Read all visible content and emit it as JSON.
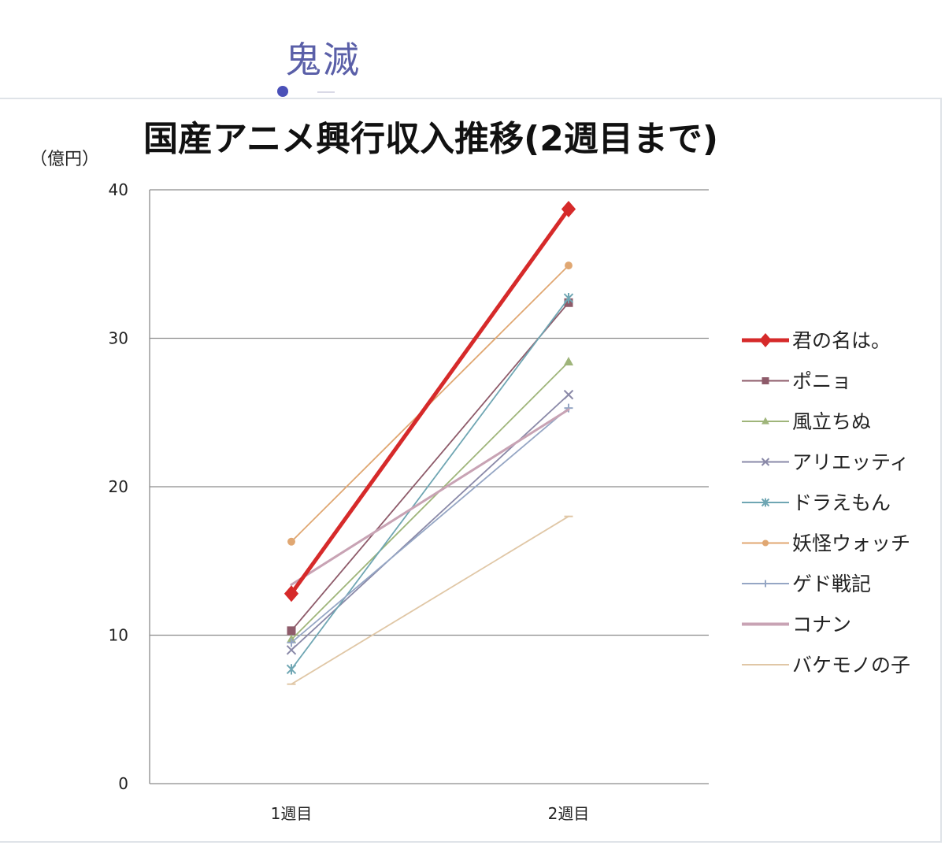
{
  "annotation": "鬼滅",
  "chart_data": {
    "type": "line",
    "title": "国産アニメ興行収入推移(2週目まで)",
    "ylabel": "（億円）",
    "categories": [
      "1週目",
      "2週目"
    ],
    "ylim": [
      0,
      40
    ],
    "yticks": [
      0,
      10,
      20,
      30,
      40
    ],
    "grid": true,
    "legend_position": "right",
    "series": [
      {
        "name": "君の名は。",
        "values": [
          12.8,
          38.7
        ],
        "color": "#d62a2a",
        "marker": "diamond",
        "bold": true
      },
      {
        "name": "ポニョ",
        "values": [
          10.3,
          32.4
        ],
        "color": "#8e5b6a",
        "marker": "square"
      },
      {
        "name": "風立ちぬ",
        "values": [
          9.7,
          28.4
        ],
        "color": "#9fb57a",
        "marker": "triangle"
      },
      {
        "name": "アリエッティ",
        "values": [
          9.0,
          26.2
        ],
        "color": "#8a89a8",
        "marker": "x"
      },
      {
        "name": "ドラえもん",
        "values": [
          7.7,
          32.7
        ],
        "color": "#6fa6b3",
        "marker": "star"
      },
      {
        "name": "妖怪ウォッチ",
        "values": [
          16.3,
          34.9
        ],
        "color": "#e0a772",
        "marker": "circle"
      },
      {
        "name": "ゲド戦記",
        "values": [
          9.5,
          25.3
        ],
        "color": "#95a6c4",
        "marker": "plus"
      },
      {
        "name": "コナン",
        "values": [
          13.4,
          25.2
        ],
        "color": "#c8a3b4",
        "marker": "none",
        "thick": true
      },
      {
        "name": "バケモノの子",
        "values": [
          6.7,
          18.0
        ],
        "color": "#e0c7a6",
        "marker": "dash"
      }
    ]
  }
}
